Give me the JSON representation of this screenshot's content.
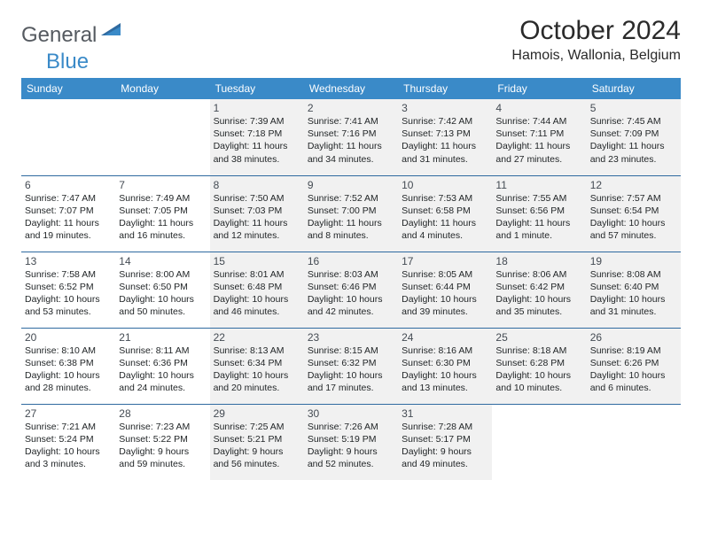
{
  "logo": {
    "word1": "General",
    "word2": "Blue"
  },
  "title": "October 2024",
  "location": "Hamois, Wallonia, Belgium",
  "colors": {
    "header_bg": "#3a8ac8",
    "header_text": "#ffffff",
    "row_border": "#2f6aa0",
    "grey_cell": "#f1f1f1",
    "daynum": "#444b53",
    "body_text": "#222628",
    "logo_grey": "#555a60",
    "logo_blue": "#3a8ac8"
  },
  "weekdays": [
    "Sunday",
    "Monday",
    "Tuesday",
    "Wednesday",
    "Thursday",
    "Friday",
    "Saturday"
  ],
  "weeks": [
    [
      {
        "blank": true
      },
      {
        "blank": true
      },
      {
        "n": "1",
        "grey": true,
        "sunrise": "7:39 AM",
        "sunset": "7:18 PM",
        "dlh": "11",
        "dlm": "38"
      },
      {
        "n": "2",
        "grey": true,
        "sunrise": "7:41 AM",
        "sunset": "7:16 PM",
        "dlh": "11",
        "dlm": "34"
      },
      {
        "n": "3",
        "grey": true,
        "sunrise": "7:42 AM",
        "sunset": "7:13 PM",
        "dlh": "11",
        "dlm": "31"
      },
      {
        "n": "4",
        "grey": true,
        "sunrise": "7:44 AM",
        "sunset": "7:11 PM",
        "dlh": "11",
        "dlm": "27"
      },
      {
        "n": "5",
        "grey": true,
        "sunrise": "7:45 AM",
        "sunset": "7:09 PM",
        "dlh": "11",
        "dlm": "23"
      }
    ],
    [
      {
        "n": "6",
        "sunrise": "7:47 AM",
        "sunset": "7:07 PM",
        "dlh": "11",
        "dlm": "19"
      },
      {
        "n": "7",
        "sunrise": "7:49 AM",
        "sunset": "7:05 PM",
        "dlh": "11",
        "dlm": "16"
      },
      {
        "n": "8",
        "grey": true,
        "sunrise": "7:50 AM",
        "sunset": "7:03 PM",
        "dlh": "11",
        "dlm": "12"
      },
      {
        "n": "9",
        "grey": true,
        "sunrise": "7:52 AM",
        "sunset": "7:00 PM",
        "dlh": "11",
        "dlm": "8"
      },
      {
        "n": "10",
        "grey": true,
        "sunrise": "7:53 AM",
        "sunset": "6:58 PM",
        "dlh": "11",
        "dlm": "4"
      },
      {
        "n": "11",
        "grey": true,
        "sunrise": "7:55 AM",
        "sunset": "6:56 PM",
        "dlh": "11",
        "dlm": "1",
        "singular": true
      },
      {
        "n": "12",
        "grey": true,
        "sunrise": "7:57 AM",
        "sunset": "6:54 PM",
        "dlh": "10",
        "dlm": "57"
      }
    ],
    [
      {
        "n": "13",
        "sunrise": "7:58 AM",
        "sunset": "6:52 PM",
        "dlh": "10",
        "dlm": "53"
      },
      {
        "n": "14",
        "sunrise": "8:00 AM",
        "sunset": "6:50 PM",
        "dlh": "10",
        "dlm": "50"
      },
      {
        "n": "15",
        "grey": true,
        "sunrise": "8:01 AM",
        "sunset": "6:48 PM",
        "dlh": "10",
        "dlm": "46"
      },
      {
        "n": "16",
        "grey": true,
        "sunrise": "8:03 AM",
        "sunset": "6:46 PM",
        "dlh": "10",
        "dlm": "42"
      },
      {
        "n": "17",
        "grey": true,
        "sunrise": "8:05 AM",
        "sunset": "6:44 PM",
        "dlh": "10",
        "dlm": "39"
      },
      {
        "n": "18",
        "grey": true,
        "sunrise": "8:06 AM",
        "sunset": "6:42 PM",
        "dlh": "10",
        "dlm": "35"
      },
      {
        "n": "19",
        "grey": true,
        "sunrise": "8:08 AM",
        "sunset": "6:40 PM",
        "dlh": "10",
        "dlm": "31"
      }
    ],
    [
      {
        "n": "20",
        "sunrise": "8:10 AM",
        "sunset": "6:38 PM",
        "dlh": "10",
        "dlm": "28"
      },
      {
        "n": "21",
        "sunrise": "8:11 AM",
        "sunset": "6:36 PM",
        "dlh": "10",
        "dlm": "24"
      },
      {
        "n": "22",
        "grey": true,
        "sunrise": "8:13 AM",
        "sunset": "6:34 PM",
        "dlh": "10",
        "dlm": "20"
      },
      {
        "n": "23",
        "grey": true,
        "sunrise": "8:15 AM",
        "sunset": "6:32 PM",
        "dlh": "10",
        "dlm": "17"
      },
      {
        "n": "24",
        "grey": true,
        "sunrise": "8:16 AM",
        "sunset": "6:30 PM",
        "dlh": "10",
        "dlm": "13"
      },
      {
        "n": "25",
        "grey": true,
        "sunrise": "8:18 AM",
        "sunset": "6:28 PM",
        "dlh": "10",
        "dlm": "10"
      },
      {
        "n": "26",
        "grey": true,
        "sunrise": "8:19 AM",
        "sunset": "6:26 PM",
        "dlh": "10",
        "dlm": "6"
      }
    ],
    [
      {
        "n": "27",
        "sunrise": "7:21 AM",
        "sunset": "5:24 PM",
        "dlh": "10",
        "dlm": "3"
      },
      {
        "n": "28",
        "sunrise": "7:23 AM",
        "sunset": "5:22 PM",
        "dlh": "9",
        "dlm": "59"
      },
      {
        "n": "29",
        "grey": true,
        "sunrise": "7:25 AM",
        "sunset": "5:21 PM",
        "dlh": "9",
        "dlm": "56"
      },
      {
        "n": "30",
        "grey": true,
        "sunrise": "7:26 AM",
        "sunset": "5:19 PM",
        "dlh": "9",
        "dlm": "52"
      },
      {
        "n": "31",
        "grey": true,
        "sunrise": "7:28 AM",
        "sunset": "5:17 PM",
        "dlh": "9",
        "dlm": "49"
      },
      {
        "blank": true
      },
      {
        "blank": true
      }
    ]
  ],
  "labels": {
    "sunrise": "Sunrise:",
    "sunset": "Sunset:",
    "daylight": "Daylight:",
    "hours": "hours",
    "and": "and",
    "minutes": "minutes.",
    "minute": "minute."
  }
}
